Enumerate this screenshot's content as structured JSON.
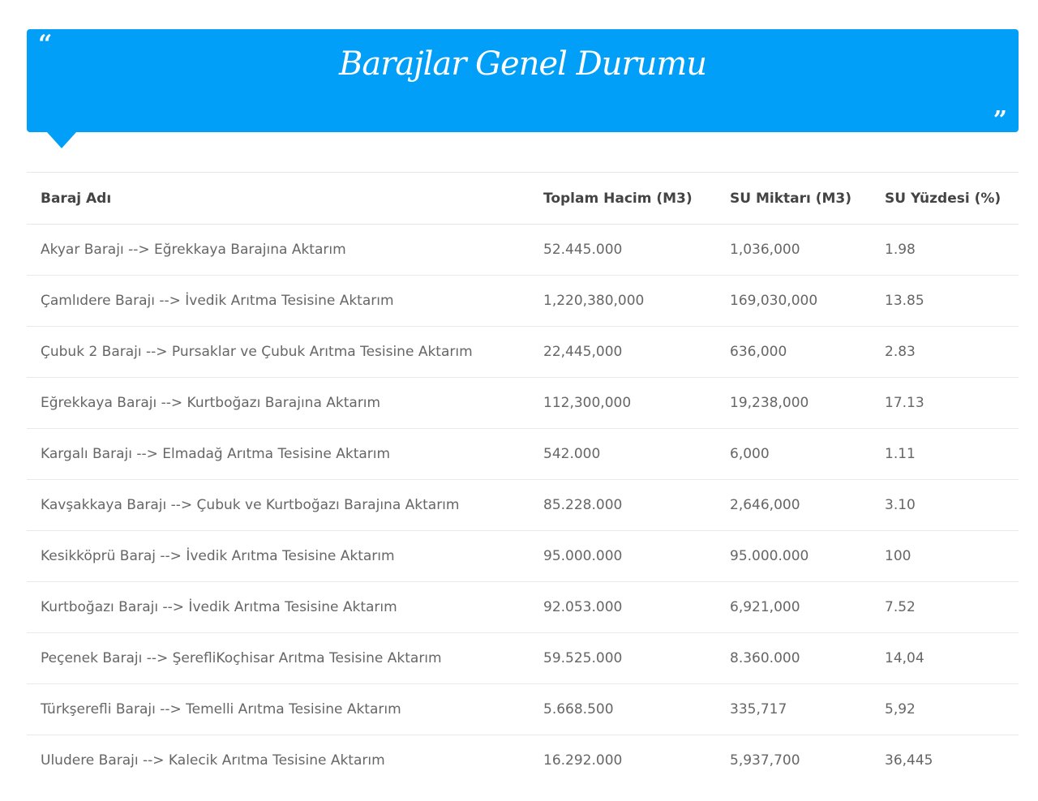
{
  "banner": {
    "title": "Barajlar Genel Durumu",
    "quote_open": "“",
    "quote_close": "”",
    "color": "#019ff7"
  },
  "table": {
    "headers": {
      "name": "Baraj Adı",
      "total_volume": "Toplam Hacim (M3)",
      "water_amount": "SU Miktarı (M3)",
      "water_percent": "SU Yüzdesi (%)"
    },
    "rows": [
      {
        "name": "Akyar Barajı --> Eğrekkaya Barajına Aktarım",
        "total_volume": "52.445.000",
        "water_amount": "1,036,000",
        "water_percent": "1.98"
      },
      {
        "name": "Çamlıdere Barajı --> İvedik Arıtma Tesisine Aktarım",
        "total_volume": "1,220,380,000",
        "water_amount": "169,030,000",
        "water_percent": "13.85"
      },
      {
        "name": "Çubuk 2 Barajı --> Pursaklar ve Çubuk Arıtma Tesisine Aktarım",
        "total_volume": "22,445,000",
        "water_amount": "636,000",
        "water_percent": "2.83"
      },
      {
        "name": "Eğrekkaya Barajı --> Kurtboğazı Barajına Aktarım",
        "total_volume": "112,300,000",
        "water_amount": "19,238,000",
        "water_percent": "17.13"
      },
      {
        "name": "Kargalı Barajı --> Elmadağ Arıtma Tesisine Aktarım",
        "total_volume": "542.000",
        "water_amount": "6,000",
        "water_percent": "1.11"
      },
      {
        "name": "Kavşakkaya Barajı --> Çubuk ve Kurtboğazı Barajına Aktarım",
        "total_volume": "85.228.000",
        "water_amount": "2,646,000",
        "water_percent": "3.10"
      },
      {
        "name": "Kesikköprü Baraj --> İvedik Arıtma Tesisine Aktarım",
        "total_volume": "95.000.000",
        "water_amount": "95.000.000",
        "water_percent": "100"
      },
      {
        "name": "Kurtboğazı Barajı --> İvedik Arıtma Tesisine Aktarım",
        "total_volume": "92.053.000",
        "water_amount": "6,921,000",
        "water_percent": "7.52"
      },
      {
        "name": "Peçenek Barajı --> ŞerefliKoçhisar Arıtma Tesisine Aktarım",
        "total_volume": "59.525.000",
        "water_amount": "8.360.000",
        "water_percent": "14,04"
      },
      {
        "name": "Türkşerefli Barajı --> Temelli Arıtma Tesisine Aktarım",
        "total_volume": "5.668.500",
        "water_amount": "335,717",
        "water_percent": "5,92"
      },
      {
        "name": "Uludere Barajı --> Kalecik Arıtma Tesisine Aktarım",
        "total_volume": "16.292.000",
        "water_amount": "5,937,700",
        "water_percent": "36,445"
      }
    ]
  }
}
